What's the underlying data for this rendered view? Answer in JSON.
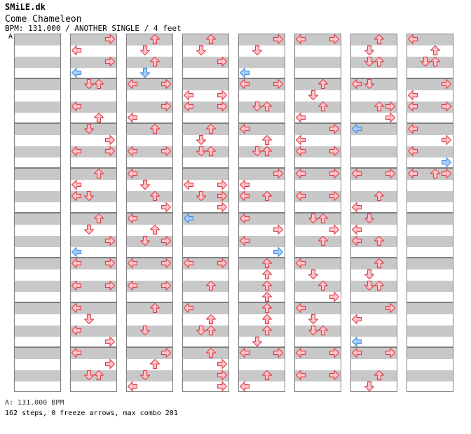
{
  "header": {
    "site_title": "SMiLE.dk",
    "song_title": "Come Chameleon",
    "info": "BPM: 131.000 / ANOTHER SINGLE / 4 feet",
    "bpm_marker": "A"
  },
  "footer": {
    "bpm_legend": "A: 131.000 BPM",
    "stats": "162 steps, 0 freeze arrows, max combo 201"
  },
  "colors": {
    "note_fill": "#ffc8c8",
    "note_stroke": "#e04050",
    "off_beat_fill": "#a8d0ff",
    "off_beat_stroke": "#4a8ee0"
  },
  "chart": {
    "columns": 8,
    "measures_per_column": 8,
    "steps": [
      {
        "c": 1,
        "m": 0,
        "r": [
          [
            0,
            "R"
          ],
          [
            1,
            "L"
          ],
          [
            2,
            "R"
          ],
          [
            3,
            "L",
            "blue"
          ]
        ]
      },
      {
        "c": 1,
        "m": 1,
        "r": [
          [
            0,
            "D"
          ],
          [
            0,
            "U"
          ],
          [
            2,
            "L"
          ],
          [
            3,
            "U"
          ]
        ]
      },
      {
        "c": 1,
        "m": 2,
        "r": [
          [
            0,
            "D"
          ],
          [
            1,
            "R"
          ],
          [
            2,
            "L"
          ],
          [
            2,
            "R"
          ]
        ]
      },
      {
        "c": 1,
        "m": 3,
        "r": [
          [
            0,
            "U"
          ],
          [
            1,
            "L"
          ],
          [
            2,
            "L"
          ],
          [
            2,
            "D"
          ]
        ]
      },
      {
        "c": 1,
        "m": 4,
        "r": [
          [
            0,
            "U"
          ],
          [
            1,
            "D"
          ],
          [
            2,
            "R"
          ],
          [
            3,
            "L",
            "blue"
          ]
        ]
      },
      {
        "c": 1,
        "m": 5,
        "r": [
          [
            0,
            "L"
          ],
          [
            0,
            "R"
          ],
          [
            2,
            "L"
          ],
          [
            2,
            "R"
          ]
        ]
      },
      {
        "c": 1,
        "m": 6,
        "r": [
          [
            0,
            "L"
          ],
          [
            1,
            "D"
          ],
          [
            2,
            "L"
          ],
          [
            3,
            "R"
          ]
        ]
      },
      {
        "c": 1,
        "m": 7,
        "r": [
          [
            0,
            "L"
          ],
          [
            1,
            "R"
          ],
          [
            2,
            "D"
          ],
          [
            2,
            "U"
          ]
        ]
      },
      {
        "c": 2,
        "m": 0,
        "r": [
          [
            0,
            "U"
          ],
          [
            1,
            "D"
          ],
          [
            2,
            "U"
          ],
          [
            3,
            "D",
            "blue"
          ]
        ]
      },
      {
        "c": 2,
        "m": 1,
        "r": [
          [
            0,
            "L"
          ],
          [
            0,
            "R"
          ],
          [
            2,
            "R"
          ],
          [
            3,
            "L"
          ]
        ]
      },
      {
        "c": 2,
        "m": 2,
        "r": [
          [
            0,
            "U"
          ],
          [
            2,
            "L"
          ],
          [
            2,
            "R"
          ]
        ]
      },
      {
        "c": 2,
        "m": 3,
        "r": [
          [
            0,
            "L"
          ],
          [
            1,
            "D"
          ],
          [
            2,
            "U"
          ],
          [
            3,
            "R"
          ]
        ]
      },
      {
        "c": 2,
        "m": 4,
        "r": [
          [
            0,
            "L"
          ],
          [
            1,
            "U"
          ],
          [
            2,
            "D"
          ],
          [
            2,
            "R"
          ]
        ]
      },
      {
        "c": 2,
        "m": 5,
        "r": [
          [
            0,
            "L"
          ],
          [
            0,
            "R"
          ],
          [
            2,
            "L"
          ],
          [
            2,
            "R"
          ]
        ]
      },
      {
        "c": 2,
        "m": 6,
        "r": [
          [
            0,
            "U"
          ],
          [
            2,
            "D"
          ]
        ]
      },
      {
        "c": 2,
        "m": 7,
        "r": [
          [
            0,
            "R"
          ],
          [
            1,
            "U"
          ],
          [
            2,
            "D"
          ],
          [
            3,
            "L"
          ]
        ]
      },
      {
        "c": 3,
        "m": 0,
        "r": [
          [
            0,
            "U"
          ],
          [
            1,
            "D"
          ],
          [
            2,
            "R"
          ]
        ]
      },
      {
        "c": 3,
        "m": 1,
        "r": [
          [
            1,
            "L"
          ],
          [
            1,
            "R"
          ],
          [
            2,
            "L"
          ],
          [
            2,
            "R"
          ]
        ]
      },
      {
        "c": 3,
        "m": 2,
        "r": [
          [
            0,
            "U"
          ],
          [
            1,
            "D"
          ],
          [
            2,
            "D"
          ],
          [
            2,
            "U"
          ]
        ]
      },
      {
        "c": 3,
        "m": 3,
        "r": [
          [
            1,
            "L"
          ],
          [
            1,
            "R"
          ],
          [
            2,
            "D"
          ],
          [
            2,
            "R"
          ],
          [
            3,
            "R"
          ]
        ]
      },
      {
        "c": 3,
        "m": 4,
        "r": [
          [
            0,
            "L",
            "blue"
          ]
        ]
      },
      {
        "c": 3,
        "m": 5,
        "r": [
          [
            0,
            "L"
          ],
          [
            0,
            "R"
          ],
          [
            2,
            "U"
          ]
        ]
      },
      {
        "c": 3,
        "m": 6,
        "r": [
          [
            0,
            "L"
          ],
          [
            1,
            "U"
          ],
          [
            2,
            "D"
          ],
          [
            2,
            "U"
          ]
        ]
      },
      {
        "c": 3,
        "m": 7,
        "r": [
          [
            0,
            "U"
          ],
          [
            1,
            "R"
          ],
          [
            2,
            "R"
          ],
          [
            3,
            "R"
          ]
        ]
      },
      {
        "c": 4,
        "m": 0,
        "r": [
          [
            0,
            "R"
          ],
          [
            1,
            "D"
          ],
          [
            3,
            "L",
            "blue"
          ]
        ]
      },
      {
        "c": 4,
        "m": 1,
        "r": [
          [
            0,
            "L"
          ],
          [
            0,
            "R"
          ],
          [
            2,
            "D"
          ],
          [
            2,
            "U"
          ]
        ]
      },
      {
        "c": 4,
        "m": 2,
        "r": [
          [
            0,
            "L"
          ],
          [
            1,
            "U"
          ],
          [
            2,
            "D"
          ],
          [
            2,
            "U"
          ]
        ]
      },
      {
        "c": 4,
        "m": 3,
        "r": [
          [
            0,
            "R"
          ],
          [
            1,
            "L"
          ],
          [
            2,
            "L"
          ],
          [
            2,
            "U"
          ]
        ]
      },
      {
        "c": 4,
        "m": 4,
        "r": [
          [
            0,
            "L"
          ],
          [
            1,
            "R"
          ],
          [
            2,
            "L"
          ],
          [
            3,
            "R",
            "blue"
          ]
        ]
      },
      {
        "c": 4,
        "m": 5,
        "r": [
          [
            0,
            "U"
          ],
          [
            1,
            "U"
          ],
          [
            2,
            "U"
          ],
          [
            3,
            "U"
          ]
        ]
      },
      {
        "c": 4,
        "m": 6,
        "r": [
          [
            0,
            "U"
          ],
          [
            1,
            "U"
          ],
          [
            2,
            "U"
          ],
          [
            3,
            "D"
          ]
        ]
      },
      {
        "c": 4,
        "m": 7,
        "r": [
          [
            0,
            "L"
          ],
          [
            0,
            "R"
          ],
          [
            2,
            "U"
          ],
          [
            3,
            "L"
          ]
        ]
      },
      {
        "c": 5,
        "m": 0,
        "r": [
          [
            0,
            "L"
          ],
          [
            0,
            "R"
          ]
        ]
      },
      {
        "c": 5,
        "m": 1,
        "r": [
          [
            0,
            "U"
          ],
          [
            1,
            "D"
          ],
          [
            2,
            "U"
          ],
          [
            3,
            "L"
          ]
        ]
      },
      {
        "c": 5,
        "m": 2,
        "r": [
          [
            0,
            "R"
          ],
          [
            1,
            "L"
          ],
          [
            2,
            "L"
          ],
          [
            2,
            "R"
          ]
        ]
      },
      {
        "c": 5,
        "m": 3,
        "r": [
          [
            0,
            "L"
          ],
          [
            0,
            "R"
          ],
          [
            2,
            "L"
          ],
          [
            2,
            "R"
          ]
        ]
      },
      {
        "c": 5,
        "m": 4,
        "r": [
          [
            0,
            "D"
          ],
          [
            0,
            "U"
          ],
          [
            1,
            "R"
          ],
          [
            2,
            "U"
          ]
        ]
      },
      {
        "c": 5,
        "m": 5,
        "r": [
          [
            0,
            "L"
          ],
          [
            1,
            "D"
          ],
          [
            2,
            "U"
          ],
          [
            3,
            "R"
          ]
        ]
      },
      {
        "c": 5,
        "m": 6,
        "r": [
          [
            0,
            "L"
          ],
          [
            1,
            "D"
          ],
          [
            2,
            "U"
          ],
          [
            2,
            "D"
          ]
        ]
      },
      {
        "c": 5,
        "m": 7,
        "r": [
          [
            0,
            "L"
          ],
          [
            0,
            "R"
          ],
          [
            2,
            "L"
          ],
          [
            2,
            "R"
          ]
        ]
      },
      {
        "c": 6,
        "m": 0,
        "r": [
          [
            0,
            "U"
          ],
          [
            1,
            "D"
          ],
          [
            2,
            "D"
          ],
          [
            2,
            "U"
          ]
        ]
      },
      {
        "c": 6,
        "m": 1,
        "r": [
          [
            0,
            "L"
          ],
          [
            0,
            "D"
          ],
          [
            2,
            "U"
          ],
          [
            2,
            "R"
          ],
          [
            3,
            "R"
          ]
        ]
      },
      {
        "c": 6,
        "m": 2,
        "r": [
          [
            0,
            "L",
            "blue"
          ]
        ]
      },
      {
        "c": 6,
        "m": 3,
        "r": [
          [
            0,
            "L"
          ],
          [
            0,
            "R"
          ],
          [
            2,
            "U"
          ],
          [
            3,
            "L"
          ]
        ]
      },
      {
        "c": 6,
        "m": 4,
        "r": [
          [
            0,
            "D"
          ],
          [
            1,
            "L"
          ],
          [
            2,
            "L"
          ],
          [
            2,
            "U"
          ]
        ]
      },
      {
        "c": 6,
        "m": 5,
        "r": [
          [
            0,
            "U"
          ],
          [
            1,
            "D"
          ],
          [
            2,
            "D"
          ],
          [
            2,
            "U"
          ]
        ]
      },
      {
        "c": 6,
        "m": 6,
        "r": [
          [
            0,
            "R"
          ],
          [
            1,
            "L"
          ],
          [
            3,
            "L",
            "blue"
          ]
        ]
      },
      {
        "c": 6,
        "m": 7,
        "r": [
          [
            0,
            "L"
          ],
          [
            0,
            "R"
          ],
          [
            2,
            "U"
          ],
          [
            3,
            "D"
          ]
        ]
      },
      {
        "c": 7,
        "m": 0,
        "r": [
          [
            0,
            "L"
          ],
          [
            1,
            "U"
          ],
          [
            2,
            "D"
          ],
          [
            2,
            "U"
          ]
        ]
      },
      {
        "c": 7,
        "m": 1,
        "r": [
          [
            0,
            "R"
          ],
          [
            1,
            "L"
          ],
          [
            2,
            "L"
          ],
          [
            2,
            "R"
          ]
        ]
      },
      {
        "c": 7,
        "m": 2,
        "r": [
          [
            0,
            "L"
          ],
          [
            1,
            "R"
          ],
          [
            2,
            "L"
          ],
          [
            3,
            "R",
            "blue"
          ]
        ]
      },
      {
        "c": 7,
        "m": 3,
        "r": [
          [
            0,
            "L"
          ],
          [
            0,
            "U"
          ],
          [
            0,
            "R"
          ]
        ]
      }
    ]
  }
}
